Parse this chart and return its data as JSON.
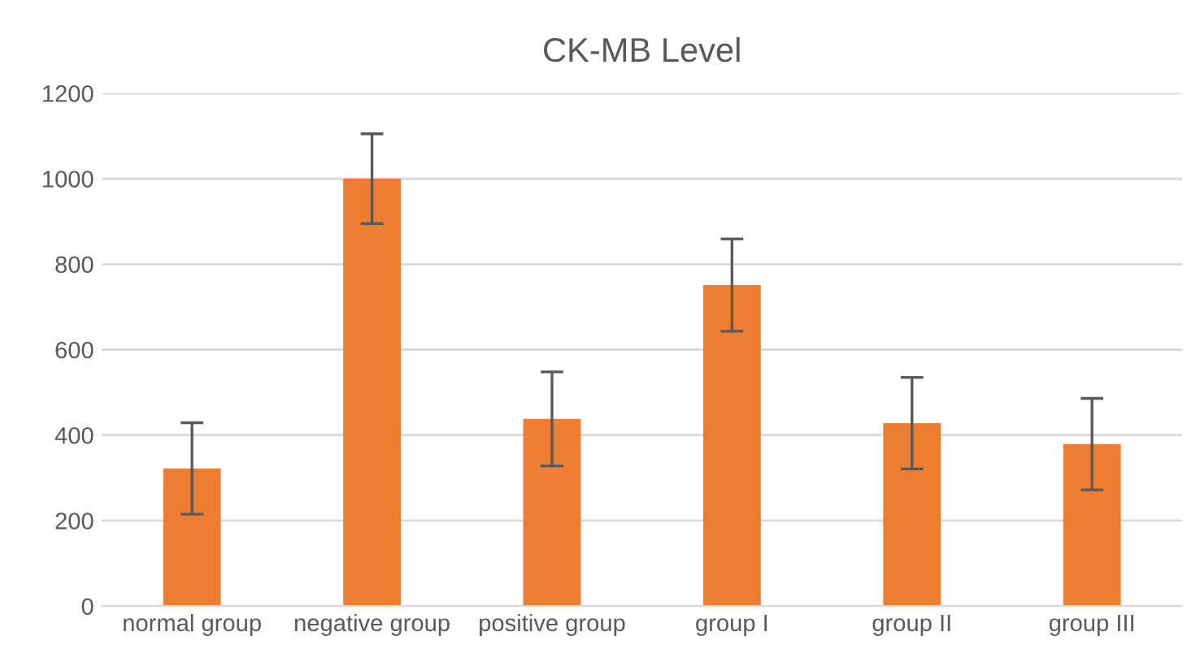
{
  "chart_data": {
    "type": "bar",
    "title": "CK-MB Level",
    "categories": [
      "normal group",
      "negative group",
      "positive group",
      "group I",
      "group II",
      "group III"
    ],
    "values": [
      322,
      1000,
      438,
      751,
      428,
      379
    ],
    "errors": [
      107,
      105,
      110,
      108,
      107,
      107
    ],
    "color": "#ed7d31",
    "ylim": [
      0,
      1200
    ],
    "yticks": [
      0,
      200,
      400,
      600,
      800,
      1000,
      1200
    ],
    "grid": "y"
  }
}
